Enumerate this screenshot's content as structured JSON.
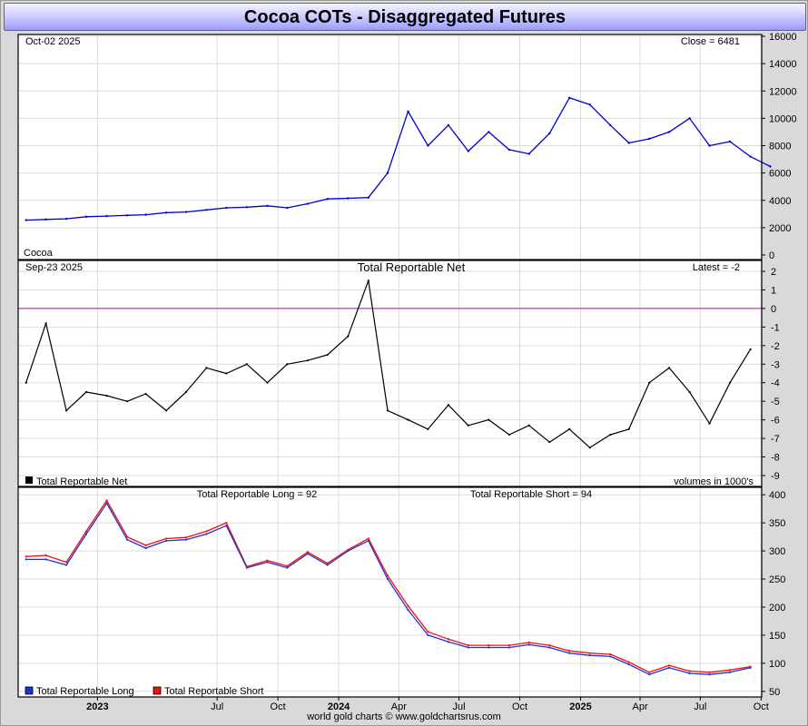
{
  "title": "Cocoa COTs - Disaggregated Futures",
  "footer": "world gold charts © www.goldchartsrus.com",
  "x_axis": {
    "labels": [
      {
        "t": "2023",
        "bold": true
      },
      {
        "t": "Jul",
        "bold": false
      },
      {
        "t": "Oct",
        "bold": false
      },
      {
        "t": "2024",
        "bold": true
      },
      {
        "t": "Apr",
        "bold": false
      },
      {
        "t": "Jul",
        "bold": false
      },
      {
        "t": "Oct",
        "bold": false
      },
      {
        "t": "2025",
        "bold": true
      },
      {
        "t": "Apr",
        "bold": false
      },
      {
        "t": "Jul",
        "bold": false
      },
      {
        "t": "Oct",
        "bold": false
      }
    ]
  },
  "colors": {
    "price": "#0000cc",
    "net": "#000000",
    "zero_line": "#cc33cc",
    "long": "#2233cc",
    "short": "#ee1111",
    "grid": "#dcdcdc"
  },
  "chart_data": [
    {
      "type": "line",
      "name": "price",
      "date_left": "Oct-02  2025",
      "latest_label": "Close = 6481",
      "series_label": "Cocoa",
      "ylim": [
        0,
        16000
      ],
      "yticks": [
        0,
        2000,
        4000,
        6000,
        8000,
        10000,
        12000,
        14000,
        16000
      ],
      "x": [
        "2022-09",
        "2022-10",
        "2022-11",
        "2022-12",
        "2023-01",
        "2023-02",
        "2023-03",
        "2023-04",
        "2023-05",
        "2023-06",
        "2023-07",
        "2023-08",
        "2023-09",
        "2023-10",
        "2023-11",
        "2023-12",
        "2024-01",
        "2024-02",
        "2024-03",
        "2024-04",
        "2024-05",
        "2024-06",
        "2024-07",
        "2024-08",
        "2024-09",
        "2024-10",
        "2024-11",
        "2024-12",
        "2025-01",
        "2025-02",
        "2025-03",
        "2025-04",
        "2025-05",
        "2025-06",
        "2025-07",
        "2025-08",
        "2025-09",
        "2025-10"
      ],
      "values": [
        2550,
        2600,
        2650,
        2800,
        2850,
        2900,
        2950,
        3100,
        3150,
        3300,
        3450,
        3500,
        3600,
        3450,
        3750,
        4100,
        4150,
        4200,
        6000,
        10500,
        8000,
        9500,
        7600,
        9000,
        7700,
        7400,
        8900,
        11500,
        11000,
        9500,
        8200,
        8500,
        9000,
        10000,
        8000,
        8300,
        7200,
        6481
      ]
    },
    {
      "type": "line",
      "name": "net",
      "date_left": "Sep-23  2025",
      "title": "Total Reportable Net",
      "latest_label": "Latest = -2",
      "legend": "Total Reportable Net",
      "right_note": "volumes in 1000's",
      "ylim": [
        -9,
        2
      ],
      "yticks": [
        2,
        1,
        0,
        -1,
        -2,
        -3,
        -4,
        -5,
        -6,
        -7,
        -8,
        -9
      ],
      "x": [
        "2022-09",
        "2022-10",
        "2022-11",
        "2022-12",
        "2023-01",
        "2023-02",
        "2023-03",
        "2023-04",
        "2023-05",
        "2023-06",
        "2023-07",
        "2023-08",
        "2023-09",
        "2023-10",
        "2023-11",
        "2023-12",
        "2024-01",
        "2024-02",
        "2024-03",
        "2024-04",
        "2024-05",
        "2024-06",
        "2024-07",
        "2024-08",
        "2024-09",
        "2024-10",
        "2024-11",
        "2024-12",
        "2025-01",
        "2025-02",
        "2025-03",
        "2025-04",
        "2025-05",
        "2025-06",
        "2025-07",
        "2025-08",
        "2025-09"
      ],
      "values": [
        -4.0,
        -0.8,
        -5.5,
        -4.5,
        -4.7,
        -5.0,
        -4.6,
        -5.5,
        -4.5,
        -3.2,
        -3.5,
        -3.0,
        -4.0,
        -3.0,
        -2.8,
        -2.5,
        -1.5,
        1.5,
        -5.5,
        -6.0,
        -6.5,
        -5.2,
        -6.3,
        -6.0,
        -6.8,
        -6.3,
        -7.2,
        -6.5,
        -7.5,
        -6.8,
        -6.5,
        -4.0,
        -3.2,
        -4.5,
        -6.2,
        -4.0,
        -2.2
      ]
    },
    {
      "type": "line",
      "name": "long_short",
      "legend": [
        "Total Reportable Long",
        "Total Reportable Short"
      ],
      "label_long": "Total Reportable Long = 92",
      "label_short": "Total Reportable Short = 94",
      "ylim": [
        40,
        410
      ],
      "yticks": [
        50,
        100,
        150,
        200,
        250,
        300,
        350,
        400
      ],
      "x": [
        "2022-09",
        "2022-10",
        "2022-11",
        "2022-12",
        "2023-01",
        "2023-02",
        "2023-03",
        "2023-04",
        "2023-05",
        "2023-06",
        "2023-07",
        "2023-08",
        "2023-09",
        "2023-10",
        "2023-11",
        "2023-12",
        "2024-01",
        "2024-02",
        "2024-03",
        "2024-04",
        "2024-05",
        "2024-06",
        "2024-07",
        "2024-08",
        "2024-09",
        "2024-10",
        "2024-11",
        "2024-12",
        "2025-01",
        "2025-02",
        "2025-03",
        "2025-04",
        "2025-05",
        "2025-06",
        "2025-07",
        "2025-08",
        "2025-09"
      ],
      "series": [
        {
          "name": "Total Reportable Long",
          "values": [
            285,
            285,
            275,
            330,
            385,
            320,
            305,
            318,
            320,
            330,
            345,
            270,
            280,
            270,
            295,
            275,
            300,
            318,
            250,
            195,
            150,
            138,
            128,
            128,
            128,
            133,
            128,
            118,
            114,
            112,
            98,
            80,
            92,
            82,
            80,
            84,
            92
          ]
        },
        {
          "name": "Total Reportable Short",
          "values": [
            290,
            292,
            280,
            335,
            390,
            325,
            310,
            322,
            324,
            335,
            350,
            272,
            283,
            273,
            298,
            278,
            302,
            322,
            256,
            202,
            156,
            143,
            132,
            132,
            132,
            137,
            132,
            122,
            118,
            116,
            102,
            84,
            96,
            86,
            84,
            88,
            94
          ]
        }
      ]
    }
  ]
}
